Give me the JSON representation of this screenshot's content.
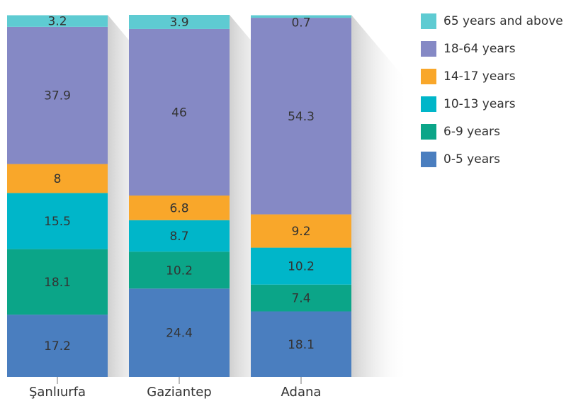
{
  "chart_data": {
    "type": "bar",
    "stacked": true,
    "title": "",
    "xlabel": "",
    "ylabel": "",
    "ylim": [
      0,
      100
    ],
    "grid": false,
    "legend_position": "right",
    "categories": [
      "Şanlıurfa",
      "Gaziantep",
      "Adana"
    ],
    "series": [
      {
        "name": "0-5 years",
        "color": "#4a7ebf",
        "values": [
          17.2,
          24.4,
          18.1
        ]
      },
      {
        "name": "6-9 years",
        "color": "#0ba588",
        "values": [
          18.1,
          10.2,
          7.4
        ]
      },
      {
        "name": "10-13 years",
        "color": "#00b6c9",
        "values": [
          15.5,
          8.7,
          10.2
        ]
      },
      {
        "name": "14-17 years",
        "color": "#f9a72a",
        "values": [
          8,
          6.8,
          9.2
        ]
      },
      {
        "name": "18-64 years",
        "color": "#8589c5",
        "values": [
          37.9,
          46,
          54.3
        ]
      },
      {
        "name": "65 years and above",
        "color": "#5ecbd2",
        "values": [
          3.2,
          3.9,
          0.7
        ]
      }
    ]
  }
}
